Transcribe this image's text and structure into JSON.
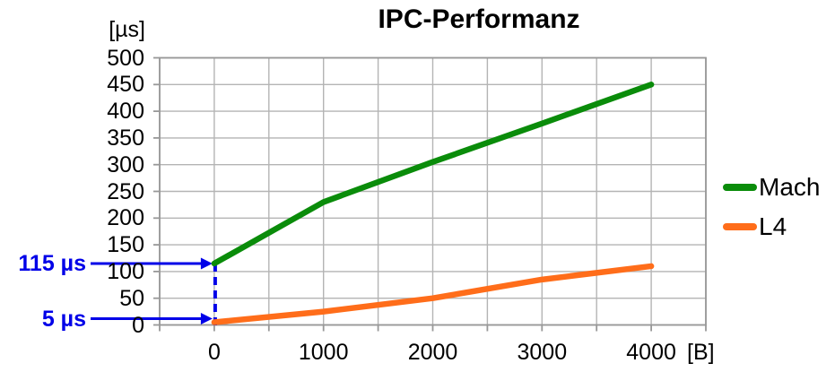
{
  "chart_data": {
    "type": "line",
    "title": "IPC-Performanz",
    "y_unit_label": "[µs]",
    "x_unit_label": "[B]",
    "xlim": [
      -500,
      4500
    ],
    "ylim": [
      0,
      500
    ],
    "x_grid_step": 500,
    "y_grid_step": 50,
    "grid": true,
    "x_tick_labels": [
      0,
      1000,
      2000,
      3000,
      4000
    ],
    "y_tick_labels": [
      500,
      450,
      400,
      350,
      300,
      250,
      200,
      150,
      100,
      50,
      0
    ],
    "legend_position": "right",
    "colors": {
      "grid": "#b4b4b4",
      "axis": "#989898",
      "annotation": "#0000e8"
    },
    "series": [
      {
        "name": "Mach",
        "color": "#0a8c0a",
        "x": [
          0,
          1000,
          2000,
          3000,
          4000
        ],
        "values": [
          115,
          230,
          305,
          377,
          450
        ]
      },
      {
        "name": "L4",
        "color": "#ff6d1a",
        "x": [
          0,
          1000,
          2000,
          3000,
          4000
        ],
        "values": [
          5,
          25,
          50,
          85,
          110
        ]
      }
    ],
    "annotations": [
      {
        "label": "115 µs",
        "x": 0,
        "y": 115,
        "drop_line": true
      },
      {
        "label": "5 µs",
        "x": 0,
        "y": 5,
        "drop_line": false
      }
    ]
  }
}
